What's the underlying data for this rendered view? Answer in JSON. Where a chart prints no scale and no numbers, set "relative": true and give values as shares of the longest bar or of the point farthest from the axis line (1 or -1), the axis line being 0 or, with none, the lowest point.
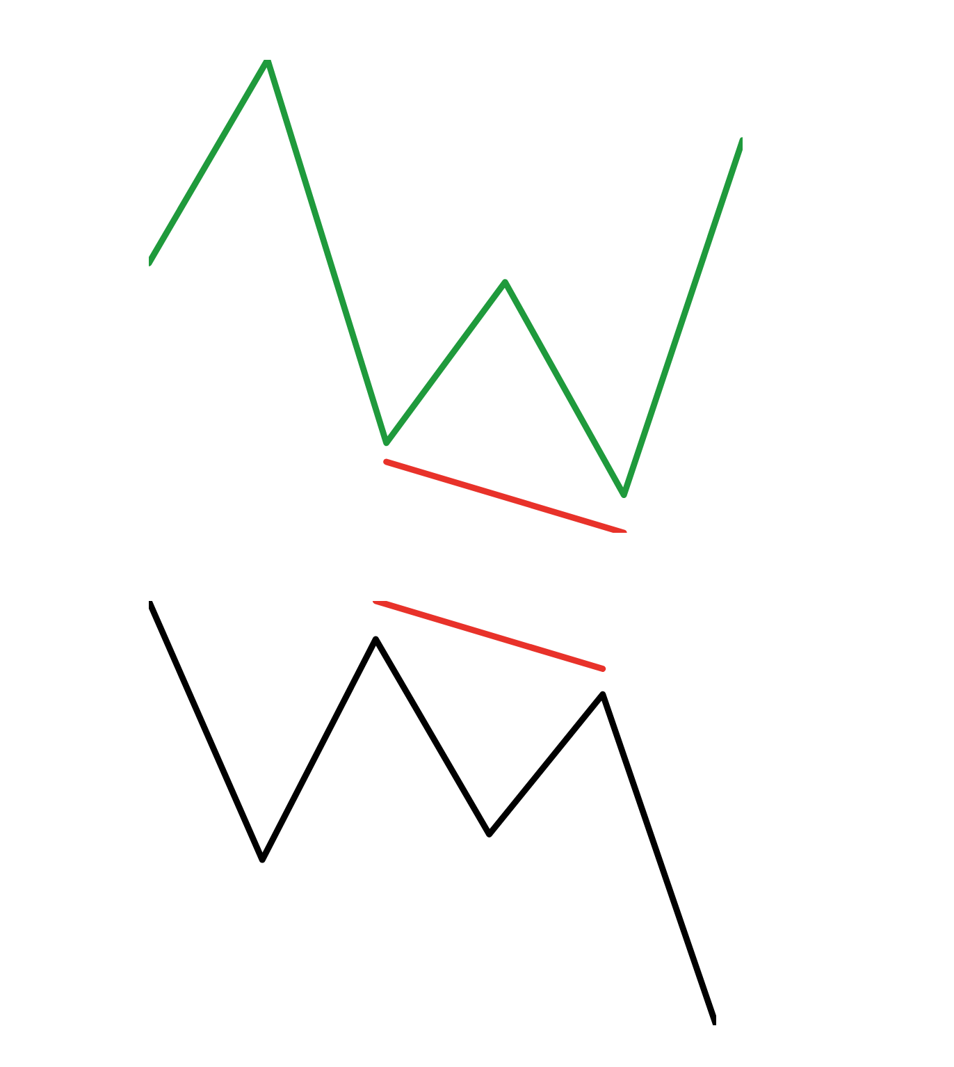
{
  "chart_data": [
    {
      "type": "line",
      "relative": true,
      "categories": [
        null,
        null,
        null,
        null,
        null,
        null
      ],
      "series": [
        {
          "color": "#1f9a3c",
          "values": [
            0.57,
            1.0,
            0.19,
            0.53,
            0.08,
            0.83
          ]
        },
        {
          "color": "#e8322a",
          "values": [
            null,
            null,
            0.15,
            null,
            0.0,
            null
          ]
        }
      ]
    },
    {
      "type": "line",
      "relative": true,
      "categories": [
        null,
        null,
        null,
        null,
        null,
        null
      ],
      "series": [
        {
          "color": "#000000",
          "values": [
            1.0,
            0.39,
            0.91,
            0.45,
            0.78,
            0.0
          ]
        },
        {
          "color": "#e8322a",
          "values": [
            null,
            null,
            1.0,
            null,
            0.84,
            null
          ]
        }
      ]
    }
  ]
}
